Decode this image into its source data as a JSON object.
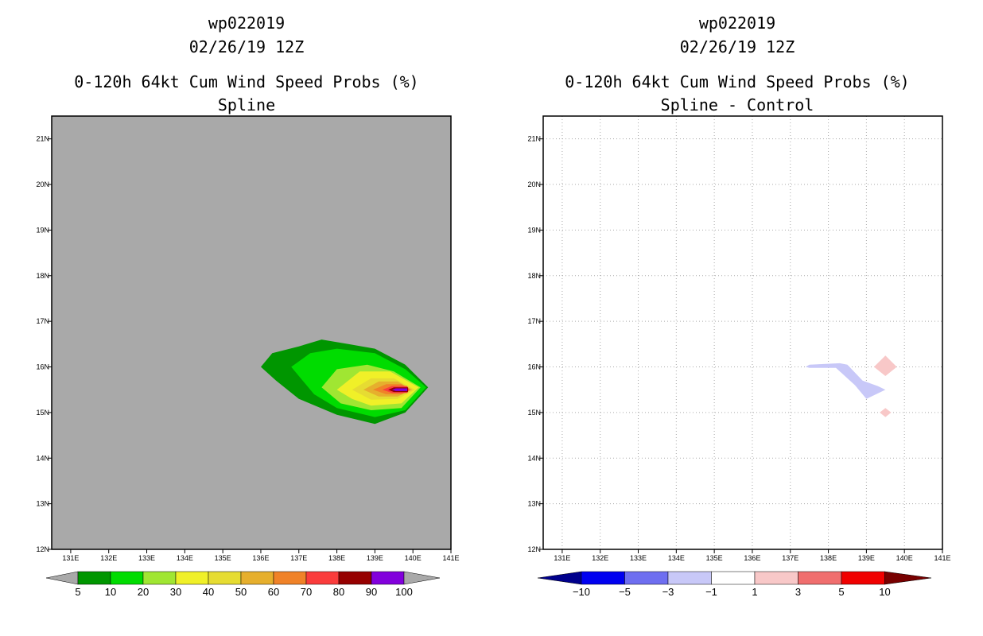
{
  "chart_data": [
    {
      "type": "contour-map",
      "title_lines": [
        "wp022019",
        "02/26/19 12Z",
        "0-120h 64kt Cum Wind Speed Probs (%)",
        "Spline"
      ],
      "x_ticks": [
        "131E",
        "132E",
        "133E",
        "134E",
        "135E",
        "136E",
        "137E",
        "138E",
        "139E",
        "140E",
        "141E"
      ],
      "y_ticks": [
        "12N",
        "13N",
        "14N",
        "15N",
        "16N",
        "17N",
        "18N",
        "19N",
        "20N",
        "21N"
      ],
      "xlim": [
        130.5,
        141
      ],
      "ylim": [
        12,
        21.5
      ],
      "grid": false,
      "background": "#a9a9a9",
      "legend": {
        "levels": [
          "5",
          "10",
          "20",
          "30",
          "40",
          "50",
          "60",
          "70",
          "80",
          "90",
          "100"
        ],
        "colors": [
          "#009600",
          "#00dc00",
          "#a0e632",
          "#f0f028",
          "#e6dc32",
          "#e6af2d",
          "#f08228",
          "#fa3c3c",
          "#960000",
          "#8200dc"
        ]
      },
      "filled_contours": [
        {
          "level": "5",
          "color": "#009600",
          "points": [
            [
              136.0,
              16.0
            ],
            [
              136.3,
              16.3
            ],
            [
              137.0,
              16.45
            ],
            [
              137.6,
              16.6
            ],
            [
              138.3,
              16.5
            ],
            [
              139.0,
              16.4
            ],
            [
              139.8,
              16.05
            ],
            [
              140.4,
              15.55
            ],
            [
              139.8,
              15.0
            ],
            [
              139.0,
              14.75
            ],
            [
              138.0,
              14.95
            ],
            [
              137.0,
              15.3
            ],
            [
              136.4,
              15.7
            ]
          ]
        },
        {
          "level": "10",
          "color": "#00dc00",
          "points": [
            [
              136.8,
              16.0
            ],
            [
              137.3,
              16.3
            ],
            [
              138.0,
              16.4
            ],
            [
              139.0,
              16.3
            ],
            [
              139.8,
              15.95
            ],
            [
              140.35,
              15.55
            ],
            [
              139.8,
              15.05
            ],
            [
              139.0,
              14.9
            ],
            [
              138.0,
              15.1
            ],
            [
              137.4,
              15.4
            ]
          ]
        },
        {
          "level": "20",
          "color": "#a0e632",
          "points": [
            [
              137.6,
              15.55
            ],
            [
              138.0,
              15.95
            ],
            [
              138.8,
              16.05
            ],
            [
              139.5,
              15.9
            ],
            [
              140.2,
              15.55
            ],
            [
              139.7,
              15.1
            ],
            [
              138.9,
              15.05
            ],
            [
              138.1,
              15.2
            ]
          ]
        },
        {
          "level": "30",
          "color": "#f0f028",
          "points": [
            [
              138.0,
              15.5
            ],
            [
              138.6,
              15.9
            ],
            [
              139.4,
              15.9
            ],
            [
              140.15,
              15.55
            ],
            [
              139.7,
              15.2
            ],
            [
              138.9,
              15.15
            ],
            [
              138.4,
              15.3
            ]
          ]
        },
        {
          "level": "40",
          "color": "#e6dc32",
          "points": [
            [
              138.4,
              15.5
            ],
            [
              138.9,
              15.75
            ],
            [
              139.5,
              15.75
            ],
            [
              140.05,
              15.5
            ],
            [
              139.6,
              15.3
            ],
            [
              138.9,
              15.28
            ]
          ]
        },
        {
          "level": "50",
          "color": "#e6af2d",
          "points": [
            [
              138.7,
              15.5
            ],
            [
              139.1,
              15.68
            ],
            [
              139.6,
              15.68
            ],
            [
              139.98,
              15.5
            ],
            [
              139.6,
              15.35
            ],
            [
              139.1,
              15.35
            ]
          ]
        },
        {
          "level": "60",
          "color": "#f08228",
          "points": [
            [
              138.95,
              15.5
            ],
            [
              139.3,
              15.62
            ],
            [
              139.7,
              15.62
            ],
            [
              139.93,
              15.5
            ],
            [
              139.7,
              15.4
            ],
            [
              139.3,
              15.4
            ]
          ]
        },
        {
          "level": "70",
          "color": "#fa3c3c",
          "points": [
            [
              139.2,
              15.5
            ],
            [
              139.45,
              15.58
            ],
            [
              139.85,
              15.58
            ],
            [
              139.9,
              15.5
            ],
            [
              139.85,
              15.43
            ],
            [
              139.45,
              15.43
            ]
          ]
        },
        {
          "level": "80",
          "color": "#960000",
          "points": [
            [
              139.35,
              15.5
            ],
            [
              139.5,
              15.55
            ],
            [
              139.87,
              15.55
            ],
            [
              139.87,
              15.45
            ],
            [
              139.5,
              15.45
            ]
          ]
        },
        {
          "level": "90",
          "color": "#8200dc",
          "points": [
            [
              139.45,
              15.5
            ],
            [
              139.55,
              15.53
            ],
            [
              139.85,
              15.53
            ],
            [
              139.85,
              15.47
            ],
            [
              139.55,
              15.47
            ]
          ]
        }
      ]
    },
    {
      "type": "contour-map",
      "title_lines": [
        "wp022019",
        "02/26/19 12Z",
        "0-120h 64kt Cum Wind Speed Probs (%)",
        "Spline - Control"
      ],
      "x_ticks": [
        "131E",
        "132E",
        "133E",
        "134E",
        "135E",
        "136E",
        "137E",
        "138E",
        "139E",
        "140E",
        "141E"
      ],
      "y_ticks": [
        "12N",
        "13N",
        "14N",
        "15N",
        "16N",
        "17N",
        "18N",
        "19N",
        "20N",
        "21N"
      ],
      "xlim": [
        130.5,
        141
      ],
      "ylim": [
        12,
        21.5
      ],
      "grid": true,
      "background": "#ffffff",
      "legend": {
        "levels": [
          "-10",
          "-5",
          "-3",
          "-1",
          "1",
          "3",
          "5",
          "10"
        ],
        "colors": [
          "#00008c",
          "#0000f0",
          "#6e6ef0",
          "#c8c8f8",
          "#ffffff",
          "#f8c8c8",
          "#f06e6e",
          "#f00000",
          "#780000"
        ]
      },
      "filled_contours": [
        {
          "level": "-3 to -1",
          "color": "#c8c8f8",
          "points": [
            [
              137.4,
              16.0
            ],
            [
              137.5,
              16.05
            ],
            [
              138.3,
              16.08
            ],
            [
              138.5,
              16.05
            ],
            [
              138.9,
              15.7
            ],
            [
              139.3,
              15.58
            ],
            [
              139.5,
              15.5
            ],
            [
              139.0,
              15.3
            ],
            [
              138.7,
              15.6
            ],
            [
              138.2,
              15.98
            ],
            [
              137.5,
              15.98
            ]
          ]
        },
        {
          "level": "1 to 3",
          "color": "#f8c8c8",
          "points": [
            [
              139.5,
              16.25
            ],
            [
              139.8,
              16.0
            ],
            [
              139.5,
              15.8
            ],
            [
              139.2,
              16.0
            ]
          ]
        },
        {
          "level": "1 to 3",
          "color": "#f8c8c8",
          "points": [
            [
              139.5,
              15.1
            ],
            [
              139.65,
              15.0
            ],
            [
              139.5,
              14.9
            ],
            [
              139.35,
              15.0
            ]
          ]
        }
      ]
    }
  ]
}
